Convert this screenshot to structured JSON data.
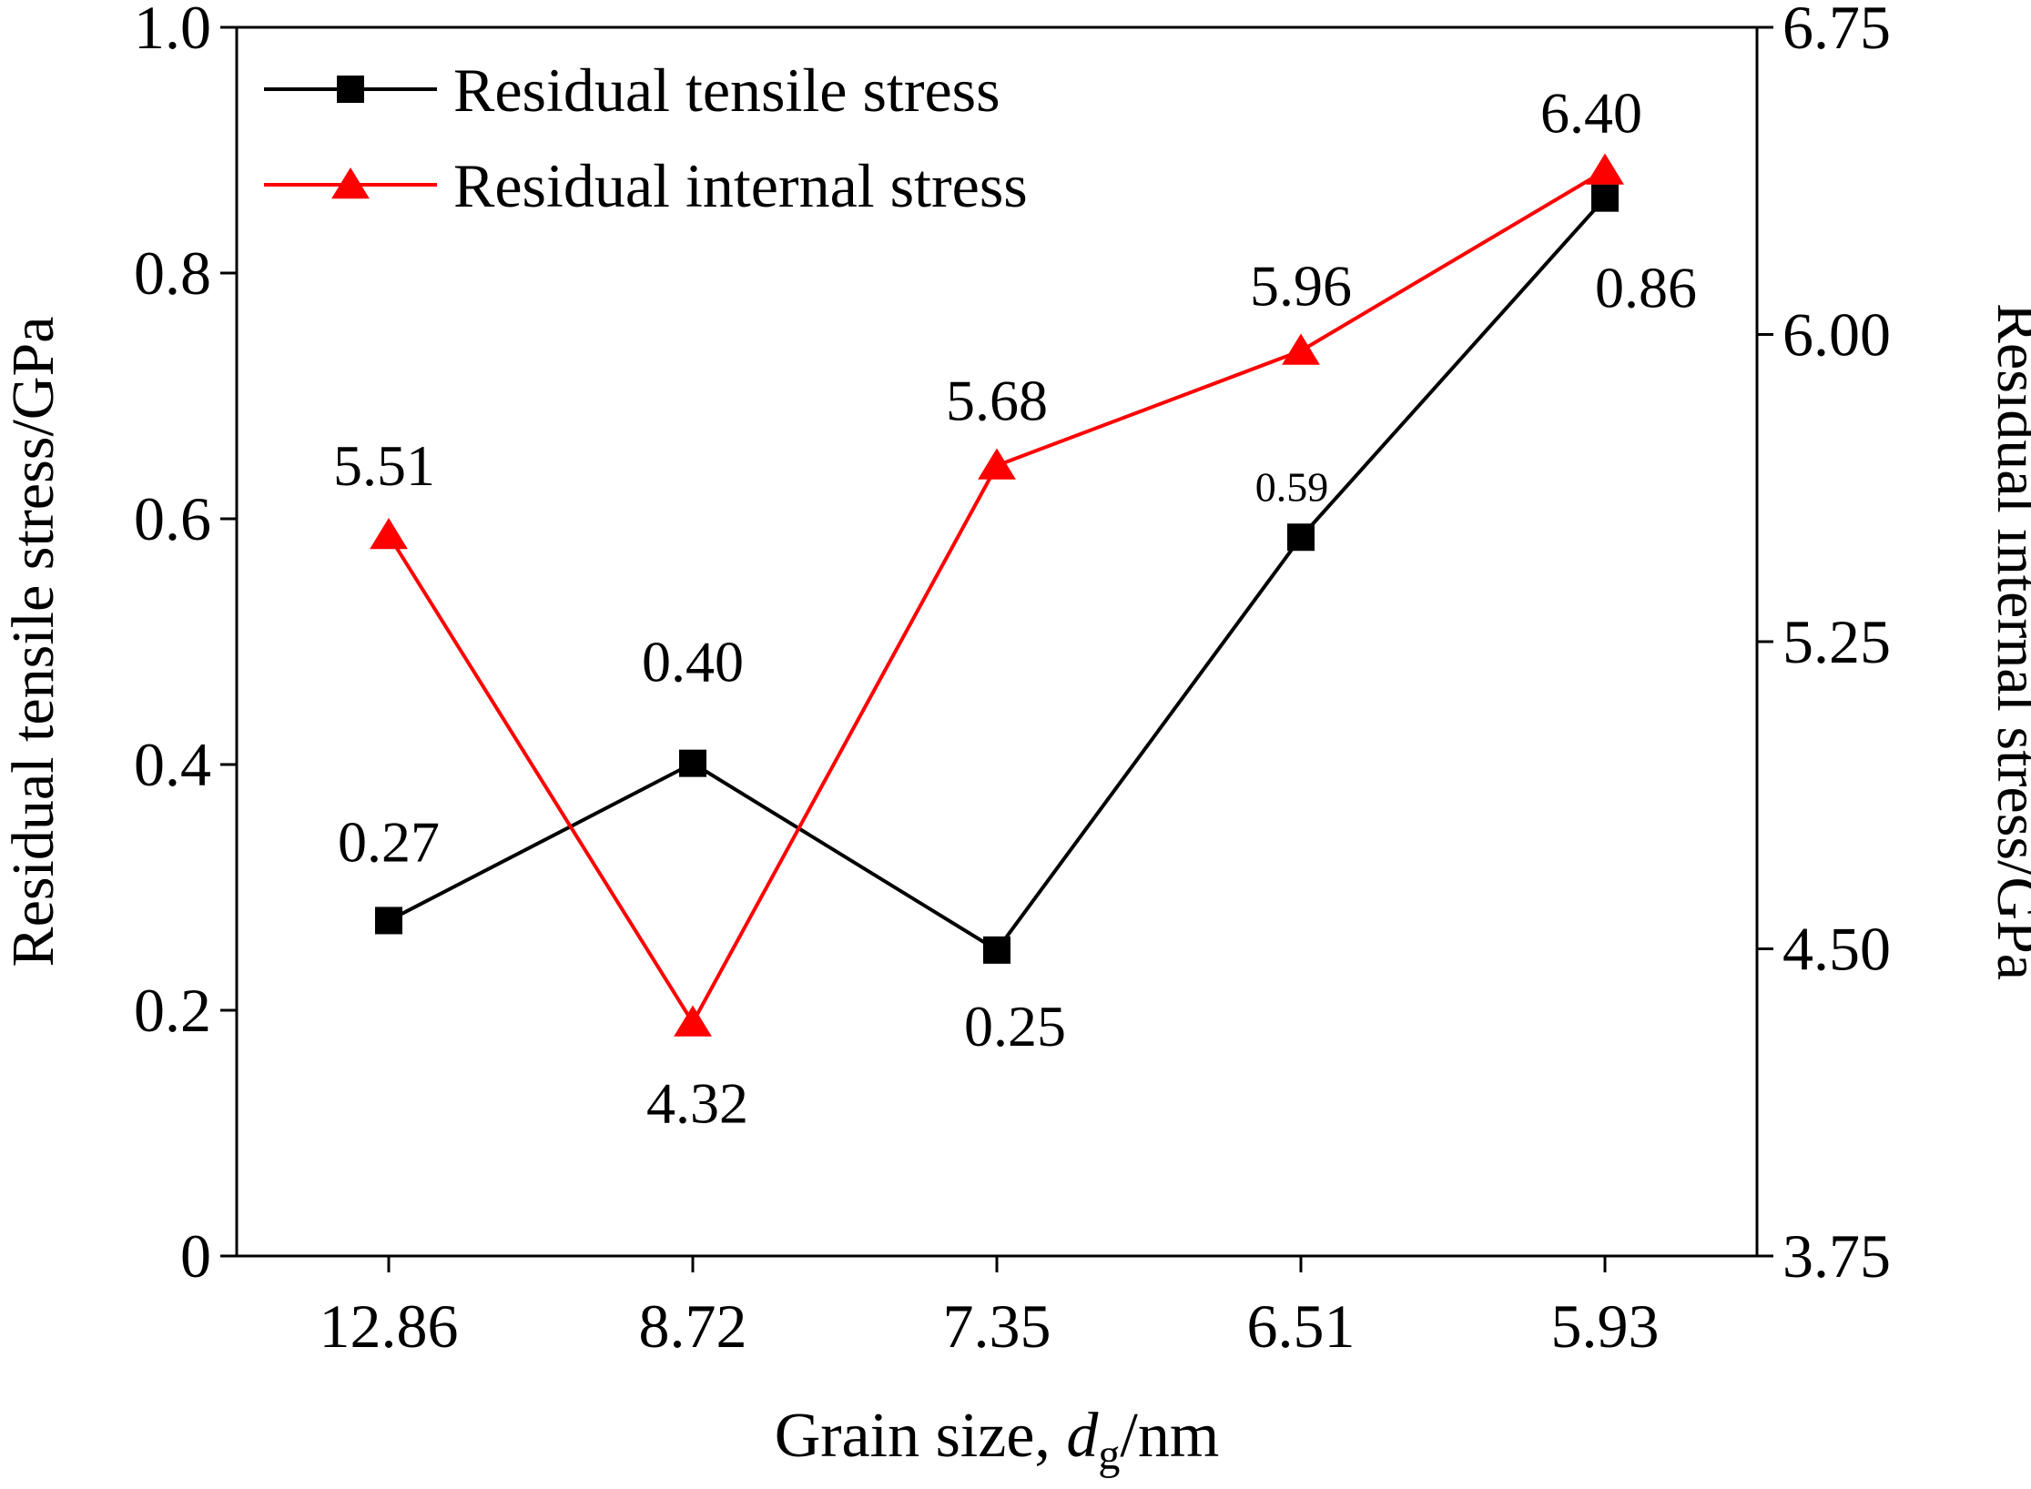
{
  "chart_data": {
    "type": "line",
    "categories": [
      "12.86",
      "8.72",
      "7.35",
      "6.51",
      "5.93"
    ],
    "xlabel": {
      "prefix": "Grain size, ",
      "var": "d",
      "sub": "g",
      "suffix": "/nm"
    },
    "ylabel_left": "Residual tensile stress/GPa",
    "ylabel_right": "Residual internal stress/GPa",
    "ylim_left": [
      0,
      1.0
    ],
    "ylim_right": [
      3.75,
      6.75
    ],
    "yticks_left": [
      "0",
      "0.2",
      "0.4",
      "0.6",
      "0.8",
      "1.0"
    ],
    "yticks_right": [
      "3.75",
      "4.50",
      "5.25",
      "6.00",
      "6.75"
    ],
    "grid": false,
    "legend_position": "top-left",
    "series": [
      {
        "name": "Residual tensile stress",
        "axis": "left",
        "color": "#000000",
        "marker": "square",
        "values": [
          0.273,
          0.401,
          0.249,
          0.585,
          0.861
        ],
        "labels": [
          "0.27",
          "0.40",
          "0.25",
          "0.59",
          "0.86"
        ]
      },
      {
        "name": "Residual internal stress",
        "axis": "right",
        "color": "#ff0000",
        "marker": "triangle",
        "values": [
          5.51,
          4.32,
          5.68,
          5.96,
          6.4
        ],
        "labels": [
          "5.51",
          "4.32",
          "5.68",
          "5.96",
          "6.40"
        ]
      }
    ]
  }
}
